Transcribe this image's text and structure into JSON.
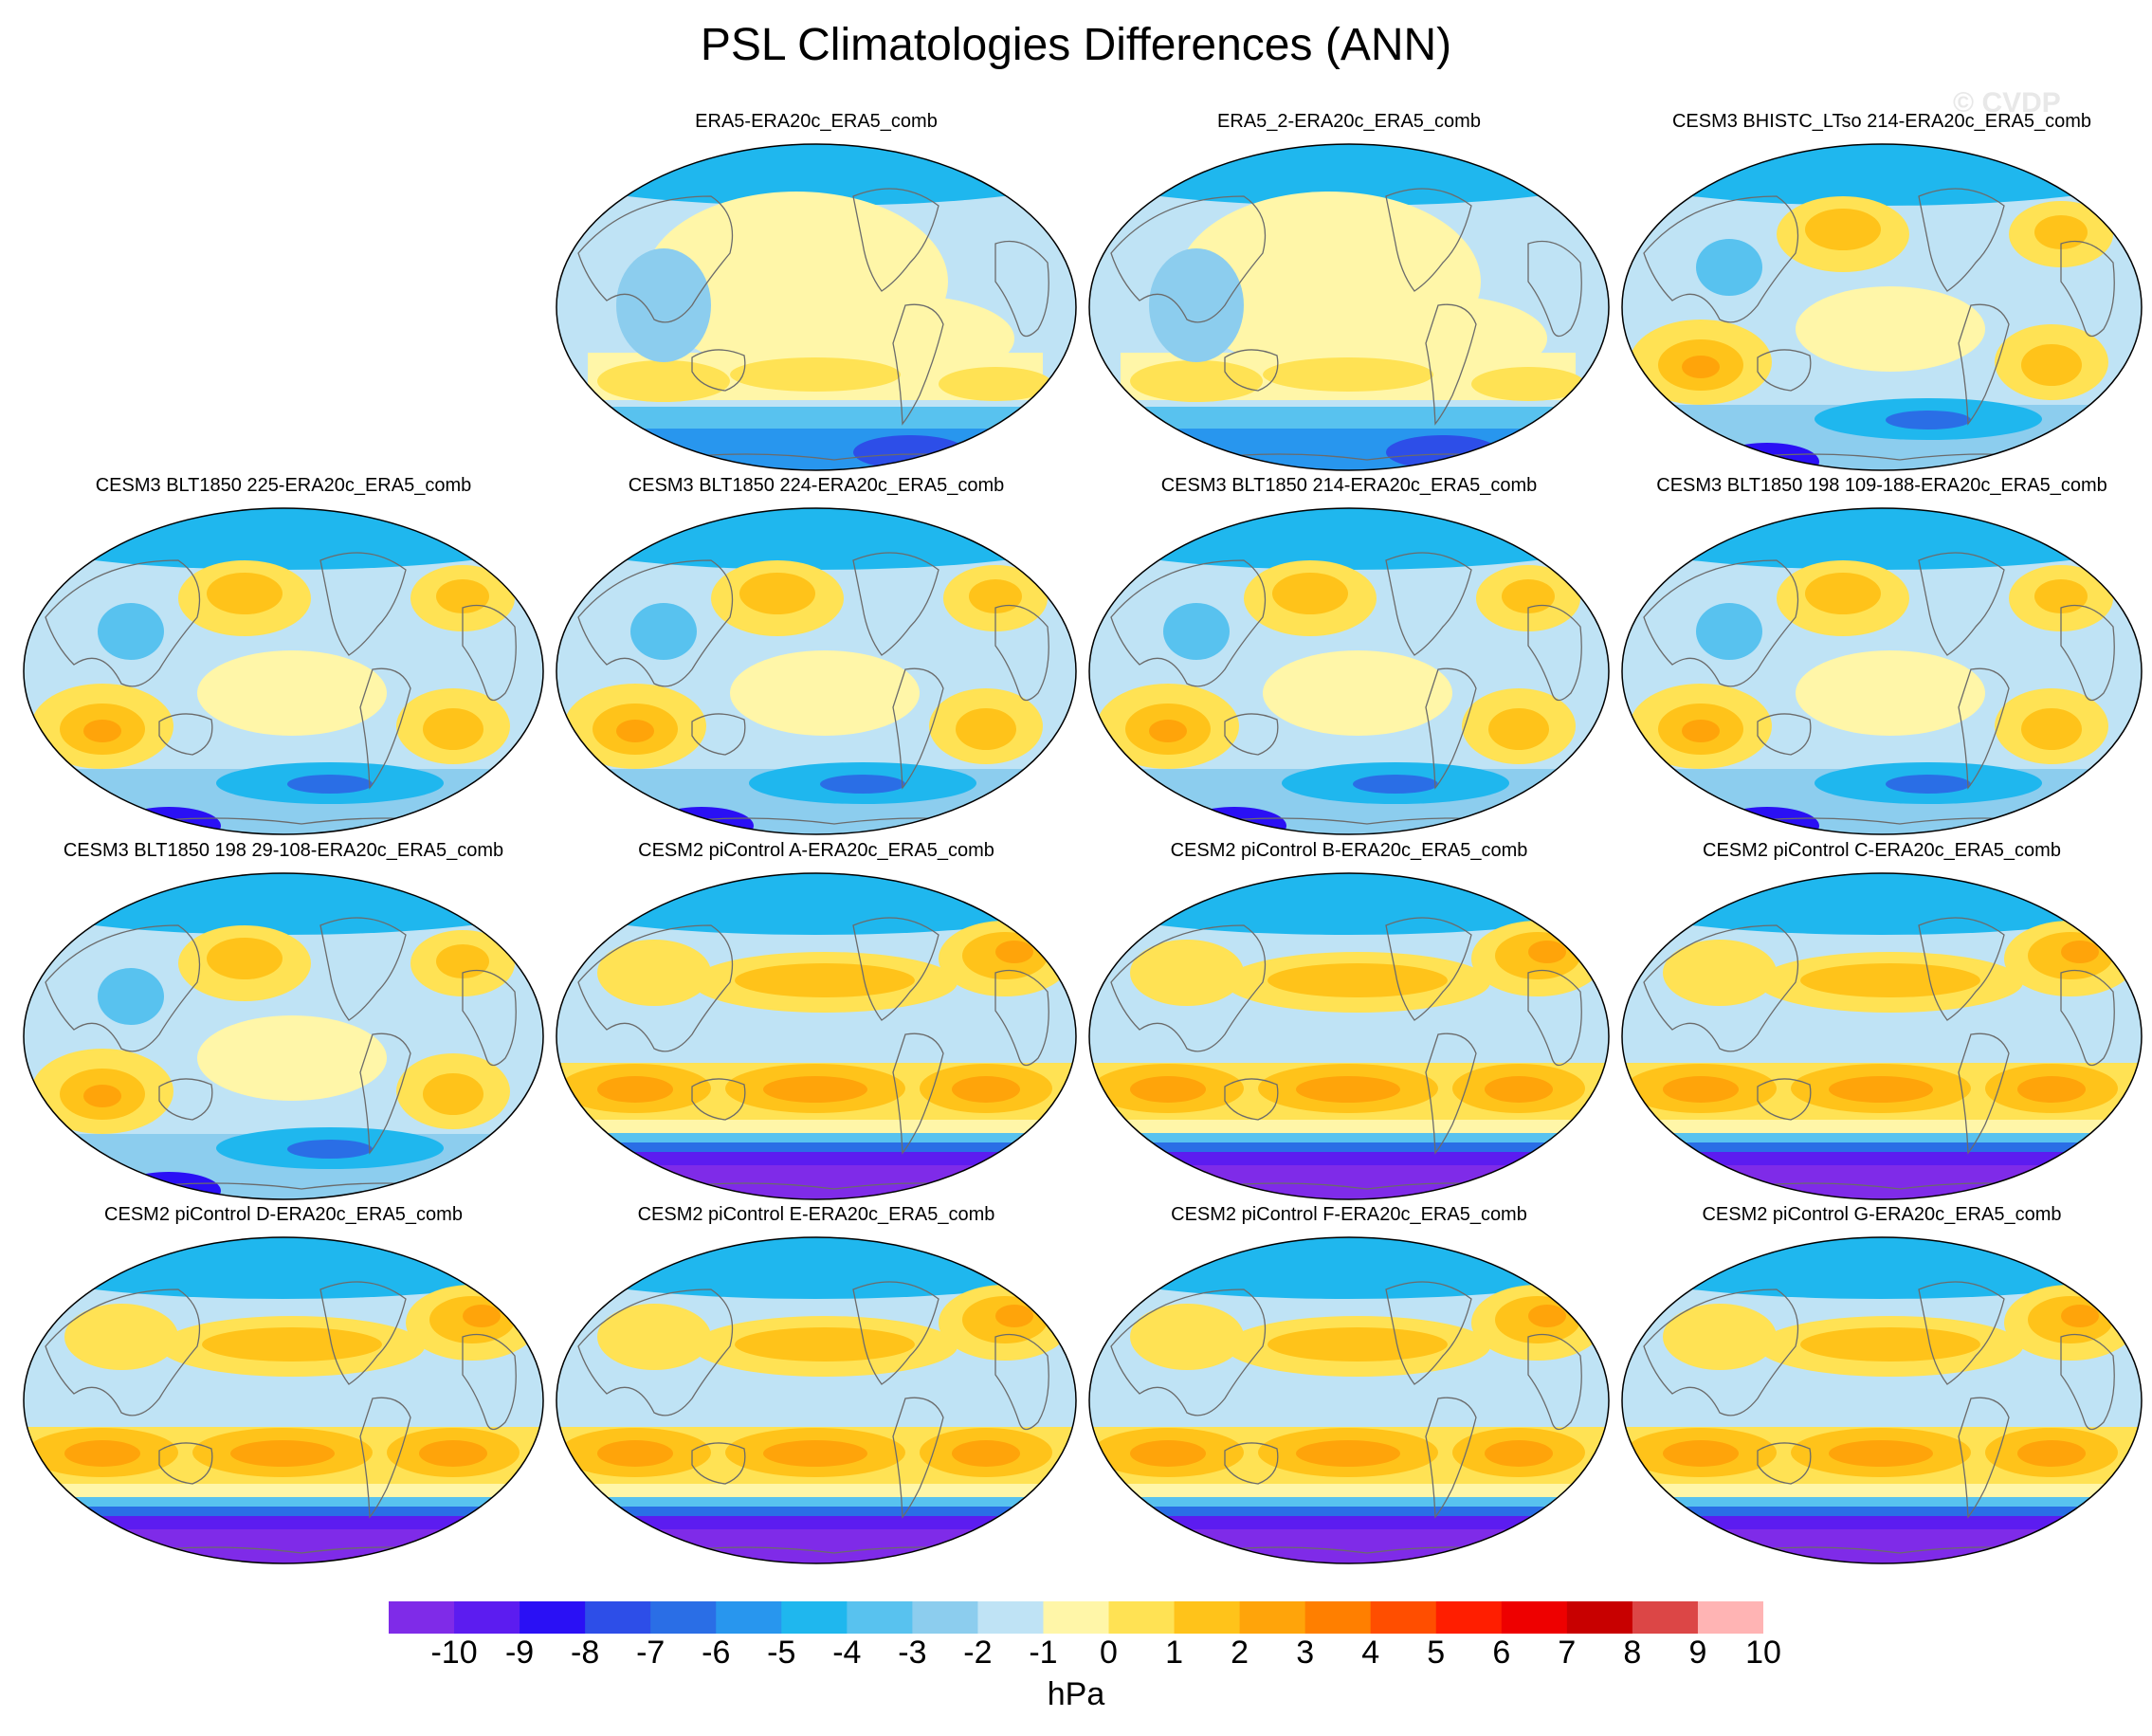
{
  "title": "PSL Climatologies Differences (ANN)",
  "watermark": "© CVDP",
  "unit": "hPa",
  "chart_data": {
    "type": "heatmap",
    "title": "PSL Climatologies Differences (ANN)",
    "projection": "global map (elliptical, Pacific-centred)",
    "panels": [
      "ERA5-ERA20c_ERA5_comb",
      "ERA5_2-ERA20c_ERA5_comb",
      "CESM3 BHISTC_LTso 214-ERA20c_ERA5_comb",
      "CESM3 BLT1850 225-ERA20c_ERA5_comb",
      "CESM3 BLT1850 224-ERA20c_ERA5_comb",
      "CESM3 BLT1850 214-ERA20c_ERA5_comb",
      "CESM3 BLT1850 198 109-188-ERA20c_ERA5_comb",
      "CESM3 BLT1850 198 29-108-ERA20c_ERA5_comb",
      "CESM2 piControl A-ERA20c_ERA5_comb",
      "CESM2 piControl B-ERA20c_ERA5_comb",
      "CESM2 piControl C-ERA20c_ERA5_comb",
      "CESM2 piControl D-ERA20c_ERA5_comb",
      "CESM2 piControl E-ERA20c_ERA5_comb",
      "CESM2 piControl F-ERA20c_ERA5_comb",
      "CESM2 piControl G-ERA20c_ERA5_comb"
    ],
    "colorbar": {
      "levels": [
        "-10",
        "-9",
        "-8",
        "-7",
        "-6",
        "-5",
        "-4",
        "-3",
        "-2",
        "-1",
        "0",
        "1",
        "2",
        "3",
        "4",
        "5",
        "6",
        "7",
        "8",
        "9",
        "10"
      ],
      "colors": [
        "#7f2be8",
        "#5c1cf0",
        "#2a10f5",
        "#2d4ee8",
        "#2a6ee6",
        "#2896ee",
        "#1fb7ee",
        "#58c2ef",
        "#8ccdee",
        "#bfe3f5",
        "#fff6a8",
        "#ffe254",
        "#ffc31a",
        "#ffa40a",
        "#ff7f00",
        "#ff4e00",
        "#ff1e00",
        "#ee0000",
        "#c80000",
        "#dc4646",
        "#ffb4b4"
      ],
      "unit": "hPa"
    }
  }
}
